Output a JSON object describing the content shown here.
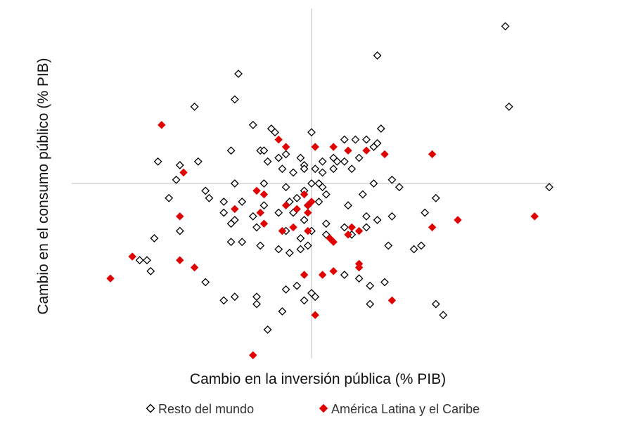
{
  "chart_data": {
    "type": "scatter",
    "xlabel": "Cambio en la inversión pública (% PIB)",
    "ylabel": "Cambio en el consumo público (% PIB)",
    "xlim": [
      -6.6,
      6.6
    ],
    "ylim": [
      -4.8,
      4.8
    ],
    "axes_cross_at_zero": true,
    "tick_labels": false,
    "grid": false,
    "legend_position": "bottom",
    "series": [
      {
        "name": "Resto del mundo",
        "marker": "diamond-open",
        "color": "#000000",
        "points": [
          [
            5.3,
            4.3
          ],
          [
            1.8,
            3.5
          ],
          [
            -2.0,
            3.0
          ],
          [
            -3.2,
            2.1
          ],
          [
            -2.1,
            2.3
          ],
          [
            5.4,
            2.1
          ],
          [
            -1.6,
            1.6
          ],
          [
            -1.1,
            1.5
          ],
          [
            1.9,
            1.5
          ],
          [
            0.0,
            1.4
          ],
          [
            -1.0,
            1.4
          ],
          [
            0.9,
            1.2
          ],
          [
            1.2,
            1.2
          ],
          [
            1.5,
            1.2
          ],
          [
            1.8,
            1.1
          ],
          [
            -2.2,
            0.9
          ],
          [
            -1.4,
            0.9
          ],
          [
            -1.3,
            0.9
          ],
          [
            1.7,
            1.0
          ],
          [
            -4.2,
            0.6
          ],
          [
            -3.6,
            0.5
          ],
          [
            -3.1,
            0.6
          ],
          [
            -1.2,
            0.6
          ],
          [
            -0.9,
            0.7
          ],
          [
            -0.7,
            0.8
          ],
          [
            -0.3,
            0.7
          ],
          [
            -0.2,
            0.5
          ],
          [
            0.3,
            0.6
          ],
          [
            0.6,
            0.7
          ],
          [
            0.7,
            0.6
          ],
          [
            0.9,
            0.6
          ],
          [
            1.3,
            0.7
          ],
          [
            2.2,
            0.1
          ],
          [
            -0.8,
            0.4
          ],
          [
            -0.5,
            0.3
          ],
          [
            -0.2,
            0.4
          ],
          [
            0.1,
            0.4
          ],
          [
            0.3,
            0.3
          ],
          [
            0.6,
            0.4
          ],
          [
            1.1,
            0.4
          ],
          [
            -3.7,
            0.1
          ],
          [
            -2.1,
            0.0
          ],
          [
            -1.3,
            0.0
          ],
          [
            -0.7,
            -0.1
          ],
          [
            -0.2,
            -0.2
          ],
          [
            0.0,
            0.0
          ],
          [
            0.2,
            0.0
          ],
          [
            0.3,
            -0.1
          ],
          [
            0.4,
            -0.3
          ],
          [
            1.7,
            0.0
          ],
          [
            2.4,
            -0.1
          ],
          [
            6.5,
            -0.1
          ],
          [
            -3.9,
            -0.4
          ],
          [
            -2.9,
            -0.2
          ],
          [
            -2.8,
            -0.4
          ],
          [
            -2.4,
            -0.5
          ],
          [
            -1.9,
            -0.5
          ],
          [
            -1.3,
            -0.6
          ],
          [
            -0.6,
            -0.5
          ],
          [
            -0.4,
            -0.4
          ],
          [
            -0.1,
            -0.6
          ],
          [
            0.2,
            -0.5
          ],
          [
            1.0,
            -0.6
          ],
          [
            1.4,
            -0.3
          ],
          [
            3.4,
            -0.4
          ],
          [
            -2.4,
            -0.8
          ],
          [
            -2.1,
            -1.0
          ],
          [
            -1.6,
            -0.9
          ],
          [
            -0.9,
            -0.8
          ],
          [
            -0.5,
            -0.8
          ],
          [
            -0.2,
            -1.0
          ],
          [
            0.4,
            -1.1
          ],
          [
            0.9,
            -1.2
          ],
          [
            1.5,
            -0.9
          ],
          [
            1.8,
            -1.0
          ],
          [
            2.2,
            -0.9
          ],
          [
            3.1,
            -0.8
          ],
          [
            -2.2,
            -1.1
          ],
          [
            -1.5,
            -1.2
          ],
          [
            -0.7,
            -1.3
          ],
          [
            -0.3,
            -1.5
          ],
          [
            0.0,
            -1.3
          ],
          [
            0.4,
            -1.4
          ],
          [
            1.1,
            -1.4
          ],
          [
            1.5,
            -1.2
          ],
          [
            -4.3,
            -1.5
          ],
          [
            -3.6,
            -1.3
          ],
          [
            -2.2,
            -1.6
          ],
          [
            -1.9,
            -1.6
          ],
          [
            -1.4,
            -1.7
          ],
          [
            -0.9,
            -1.8
          ],
          [
            -0.6,
            -1.9
          ],
          [
            -0.3,
            -1.8
          ],
          [
            -0.1,
            -1.7
          ],
          [
            2.1,
            -1.7
          ],
          [
            3.0,
            -1.7
          ],
          [
            -4.5,
            -2.1
          ],
          [
            -4.4,
            -2.4
          ],
          [
            -2.9,
            -2.7
          ],
          [
            -2.1,
            -3.1
          ],
          [
            -0.7,
            -2.9
          ],
          [
            -0.4,
            -2.8
          ],
          [
            0.0,
            -3.0
          ],
          [
            0.9,
            -2.5
          ],
          [
            1.3,
            -2.6
          ],
          [
            1.6,
            -2.8
          ],
          [
            2.0,
            -2.7
          ],
          [
            2.8,
            -1.8
          ],
          [
            -4.7,
            -2.1
          ],
          [
            -1.5,
            -3.3
          ],
          [
            -1.5,
            -3.1
          ],
          [
            -0.2,
            -3.2
          ],
          [
            0.1,
            -3.1
          ],
          [
            1.6,
            -3.3
          ],
          [
            3.4,
            -3.3
          ],
          [
            3.6,
            -3.6
          ],
          [
            -2.4,
            -3.2
          ],
          [
            -0.8,
            -3.5
          ],
          [
            -1.2,
            -4.0
          ]
        ]
      },
      {
        "name": "América Latina y el Caribe",
        "marker": "diamond-filled",
        "color": "#e00000",
        "points": [
          [
            -4.1,
            1.6
          ],
          [
            -0.9,
            1.2
          ],
          [
            -0.7,
            1.0
          ],
          [
            0.1,
            1.0
          ],
          [
            0.6,
            1.0
          ],
          [
            1.0,
            0.9
          ],
          [
            1.5,
            0.9
          ],
          [
            2.0,
            0.8
          ],
          [
            3.3,
            0.8
          ],
          [
            -3.5,
            0.3
          ],
          [
            -1.5,
            -0.2
          ],
          [
            -1.3,
            -0.3
          ],
          [
            -0.2,
            -0.3
          ],
          [
            -0.1,
            -0.6
          ],
          [
            0.0,
            -0.5
          ],
          [
            -2.1,
            -0.7
          ],
          [
            -1.4,
            -0.8
          ],
          [
            -0.7,
            -0.6
          ],
          [
            -0.4,
            -0.7
          ],
          [
            -0.1,
            -0.8
          ],
          [
            -3.6,
            -0.9
          ],
          [
            3.3,
            -1.2
          ],
          [
            4.0,
            -1.0
          ],
          [
            6.1,
            -0.9
          ],
          [
            -1.3,
            -1.1
          ],
          [
            -0.8,
            -1.3
          ],
          [
            -0.5,
            -1.2
          ],
          [
            -0.1,
            -1.3
          ],
          [
            0.5,
            -1.5
          ],
          [
            1.0,
            -1.4
          ],
          [
            1.1,
            -1.2
          ],
          [
            -4.9,
            -2.0
          ],
          [
            -3.6,
            -2.1
          ],
          [
            -3.2,
            -2.3
          ],
          [
            -0.2,
            -2.5
          ],
          [
            0.6,
            -1.6
          ],
          [
            0.6,
            -2.4
          ],
          [
            0.3,
            -2.5
          ],
          [
            1.3,
            -2.3
          ],
          [
            1.3,
            -2.2
          ],
          [
            -5.5,
            -2.6
          ],
          [
            2.2,
            -3.2
          ],
          [
            0.1,
            -3.6
          ],
          [
            -1.6,
            -4.7
          ],
          [
            1.3,
            -1.3
          ]
        ]
      }
    ]
  },
  "legend": {
    "items": [
      {
        "label": "Resto del mundo",
        "marker": "diamond-open",
        "color": "#000000"
      },
      {
        "label": "América Latina y el Caribe",
        "marker": "diamond-filled",
        "color": "#e00000"
      }
    ]
  },
  "colors": {
    "axis_line": "#bfbfbf",
    "open_marker_stroke": "#000000",
    "latam_fill": "#e00000"
  }
}
